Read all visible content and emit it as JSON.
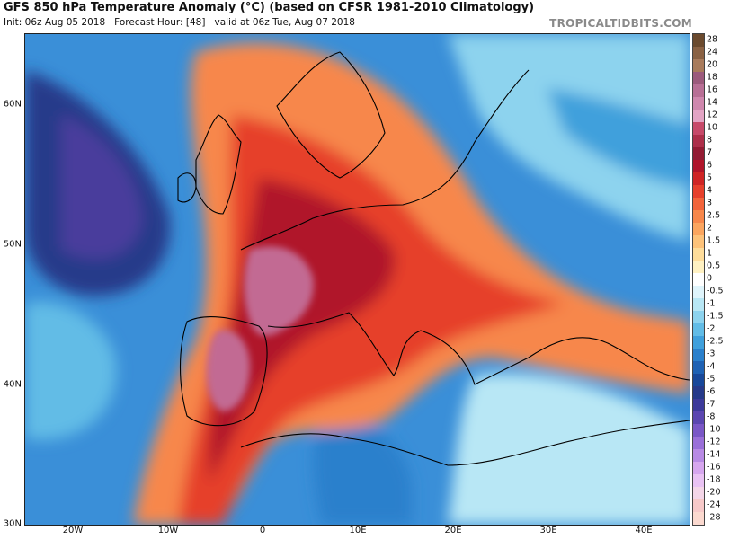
{
  "header": {
    "title": "GFS 850 hPa Temperature Anomaly (°C) (based on CFSR 1981-2010 Climatology)",
    "init": "Init: 06z Aug 05 2018",
    "forecast_hour": "Forecast Hour: [48]",
    "valid": "valid at 06z Tue, Aug 07 2018",
    "brand": "TROPICALTIDBITS.COM"
  },
  "axes": {
    "lat_labels": [
      "60N",
      "50N",
      "40N",
      "30N"
    ],
    "lon_labels": [
      "20W",
      "10W",
      "0",
      "10E",
      "20E",
      "30E",
      "40E"
    ]
  },
  "colorbar": {
    "levels": [
      {
        "label": "28",
        "color": "#6b4a2e"
      },
      {
        "label": "24",
        "color": "#8a6143"
      },
      {
        "label": "20",
        "color": "#a97b5c"
      },
      {
        "label": "18",
        "color": "#9c5a7c"
      },
      {
        "label": "16",
        "color": "#b86f95"
      },
      {
        "label": "14",
        "color": "#cf87ad"
      },
      {
        "label": "12",
        "color": "#e3a4c4"
      },
      {
        "label": "10",
        "color": "#c74a6a"
      },
      {
        "label": "8",
        "color": "#ad2f4a"
      },
      {
        "label": "7",
        "color": "#931b33"
      },
      {
        "label": "6",
        "color": "#b0152a"
      },
      {
        "label": "5",
        "color": "#cf2525"
      },
      {
        "label": "4",
        "color": "#e6402c"
      },
      {
        "label": "3",
        "color": "#f2643b"
      },
      {
        "label": "2.5",
        "color": "#f7874b"
      },
      {
        "label": "2",
        "color": "#fba55f"
      },
      {
        "label": "1.5",
        "color": "#fdc27a"
      },
      {
        "label": "1",
        "color": "#fedc9a"
      },
      {
        "label": "0.5",
        "color": "#fff1c2"
      },
      {
        "label": "0",
        "color": "#ffffff"
      },
      {
        "label": "-0.5",
        "color": "#dff4fb"
      },
      {
        "label": "-1",
        "color": "#b8e7f5"
      },
      {
        "label": "-1.5",
        "color": "#8dd3ee"
      },
      {
        "label": "-2",
        "color": "#62bce6"
      },
      {
        "label": "-2.5",
        "color": "#3fa0dc"
      },
      {
        "label": "-3",
        "color": "#2a80cc"
      },
      {
        "label": "-4",
        "color": "#1f62b4"
      },
      {
        "label": "-5",
        "color": "#18489a"
      },
      {
        "label": "-6",
        "color": "#263a8a"
      },
      {
        "label": "-7",
        "color": "#3d3a9a"
      },
      {
        "label": "-8",
        "color": "#5b46b0"
      },
      {
        "label": "-10",
        "color": "#7a57c6"
      },
      {
        "label": "-12",
        "color": "#9a6fd8"
      },
      {
        "label": "-14",
        "color": "#b88ae4"
      },
      {
        "label": "-16",
        "color": "#d6a6ee"
      },
      {
        "label": "-18",
        "color": "#e9c2f3"
      },
      {
        "label": "-20",
        "color": "#f4d6e8"
      },
      {
        "label": "-24",
        "color": "#f7c9c9"
      },
      {
        "label": "-28",
        "color": "#fbd9cf"
      }
    ]
  },
  "map_colors": {
    "ocean_base": "#3a8fd8",
    "deep_cold": "#2d3f92",
    "strong_warm": "#b0152a",
    "extreme_warm": "#c26b93",
    "coastline": "#000000"
  }
}
